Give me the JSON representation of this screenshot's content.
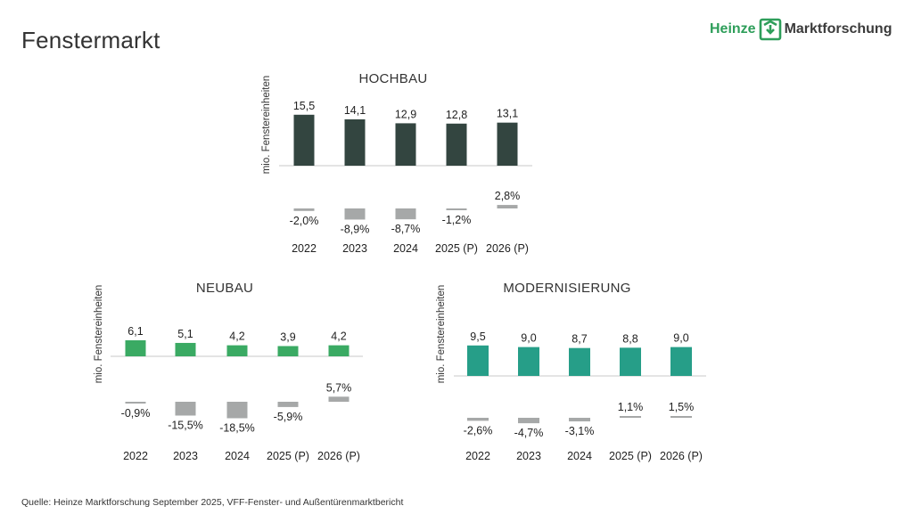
{
  "page": {
    "title": "Fenstermarkt",
    "source": "Quelle: Heinze Marktforschung September 2025, VFF-Fenster- und Außentürenmarktbericht"
  },
  "logo": {
    "brand": "Heinze",
    "suffix": "Marktforschung",
    "icon": "heinze-arrows-icon",
    "color": "#2e9e5a"
  },
  "colors": {
    "hochbau": "#334540",
    "neubau": "#3aaa63",
    "modernisierung": "#269e88",
    "change_bar": "#a6a8a8",
    "axis": "#c8c8c8"
  },
  "chart_data": [
    {
      "type": "bar",
      "id": "hochbau",
      "title": "HOCHBAU",
      "ylabel": "mio. Fenstereinheiten",
      "categories": [
        "2022",
        "2023",
        "2024",
        "2025 (P)",
        "2026 (P)"
      ],
      "values": [
        15.5,
        14.1,
        12.9,
        12.8,
        13.1
      ],
      "value_labels": [
        "15,5",
        "14,1",
        "12,9",
        "12,8",
        "13,1"
      ],
      "changes": [
        -2.0,
        -8.9,
        -8.7,
        -1.2,
        2.8
      ],
      "change_labels": [
        "-2,0%",
        "-8,9%",
        "-8,7%",
        "-1,2%",
        "2,8%"
      ],
      "legend": "none",
      "grid": false
    },
    {
      "type": "bar",
      "id": "neubau",
      "title": "NEUBAU",
      "ylabel": "mio. Fenstereinheiten",
      "categories": [
        "2022",
        "2023",
        "2024",
        "2025 (P)",
        "2026 (P)"
      ],
      "values": [
        6.1,
        5.1,
        4.2,
        3.9,
        4.2
      ],
      "value_labels": [
        "6,1",
        "5,1",
        "4,2",
        "3,9",
        "4,2"
      ],
      "changes": [
        -0.9,
        -15.5,
        -18.5,
        -5.9,
        5.7
      ],
      "change_labels": [
        "-0,9%",
        "-15,5%",
        "-18,5%",
        "-5,9%",
        "5,7%"
      ],
      "legend": "none",
      "grid": false
    },
    {
      "type": "bar",
      "id": "modernisierung",
      "title": "MODERNISIERUNG",
      "ylabel": "mio. Fenstereinheiten",
      "categories": [
        "2022",
        "2023",
        "2024",
        "2025 (P)",
        "2026 (P)"
      ],
      "values": [
        9.5,
        9.0,
        8.7,
        8.8,
        9.0
      ],
      "value_labels": [
        "9,5",
        "9,0",
        "8,7",
        "8,8",
        "9,0"
      ],
      "changes": [
        -2.6,
        -4.7,
        -3.1,
        1.1,
        1.5
      ],
      "change_labels": [
        "-2,6%",
        "-4,7%",
        "-3,1%",
        "1,1%",
        "1,5%"
      ],
      "legend": "none",
      "grid": false
    }
  ]
}
